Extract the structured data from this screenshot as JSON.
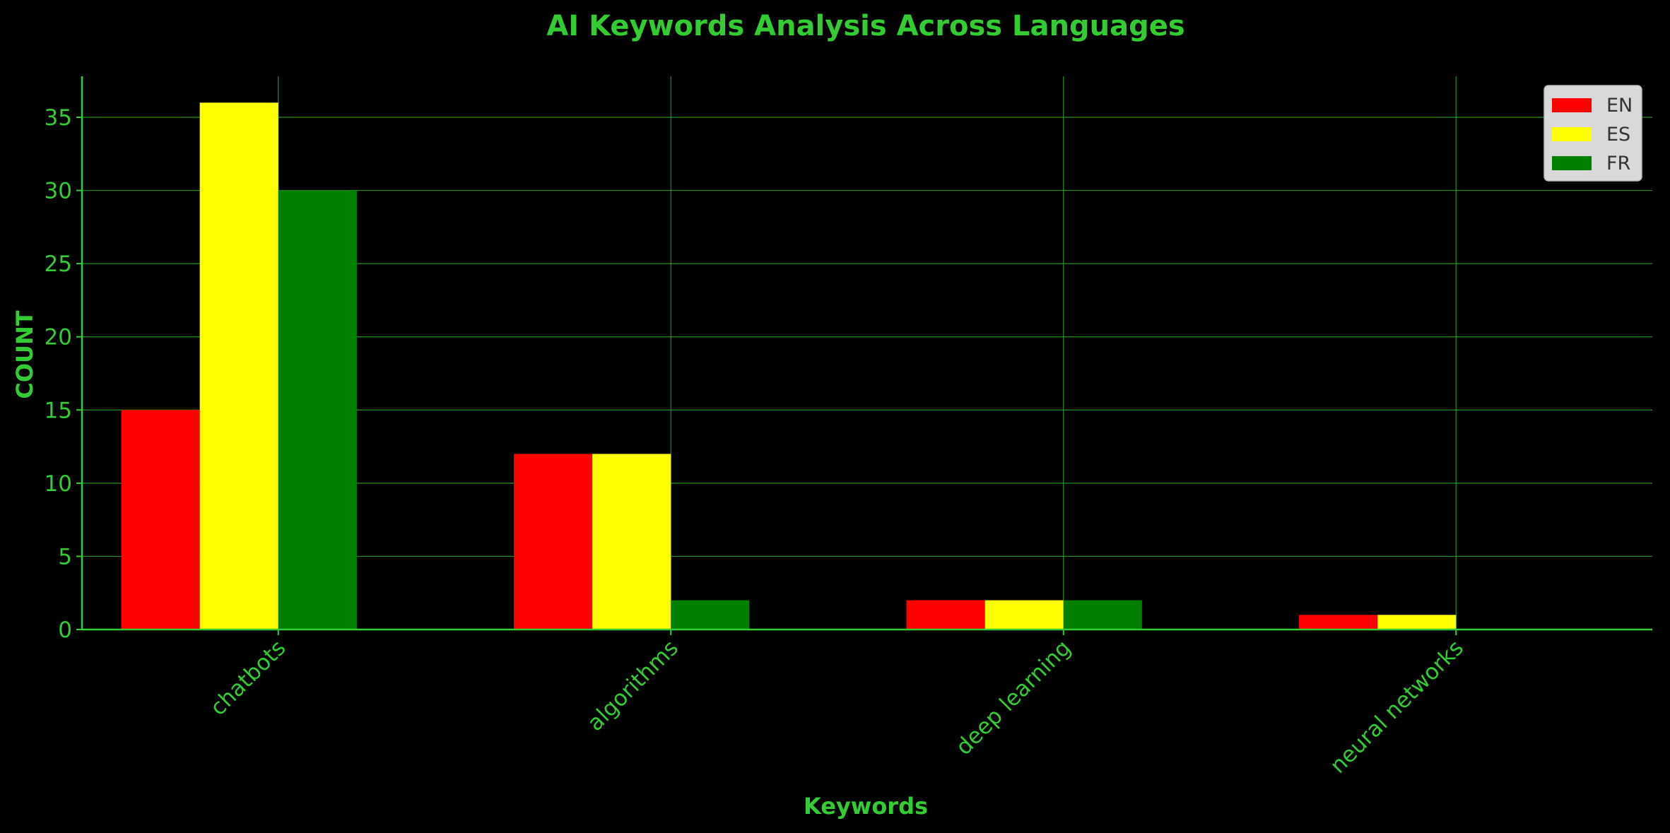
{
  "colors": {
    "background": "#000000",
    "text": "#33cc33",
    "axis": "#33cc33",
    "grid": "#33cc33",
    "legend_bg": "#d9d9d9",
    "legend_text": "#333333"
  },
  "chart_data": {
    "type": "bar",
    "title": "AI Keywords Analysis Across Languages",
    "xlabel": "Keywords",
    "ylabel": "COUNT",
    "categories": [
      "chatbots",
      "algorithms",
      "deep learning",
      "neural networks"
    ],
    "series": [
      {
        "name": "EN",
        "color": "#ff0000",
        "values": [
          15,
          12,
          2,
          1
        ]
      },
      {
        "name": "ES",
        "color": "#ffff00",
        "values": [
          36,
          12,
          2,
          1
        ]
      },
      {
        "name": "FR",
        "color": "#008000",
        "values": [
          30,
          2,
          2,
          0
        ]
      }
    ],
    "ylim": [
      0,
      37.8
    ],
    "yticks": [
      0,
      5,
      10,
      15,
      20,
      25,
      30,
      35
    ],
    "grid": true,
    "legend_position": "top-right"
  }
}
